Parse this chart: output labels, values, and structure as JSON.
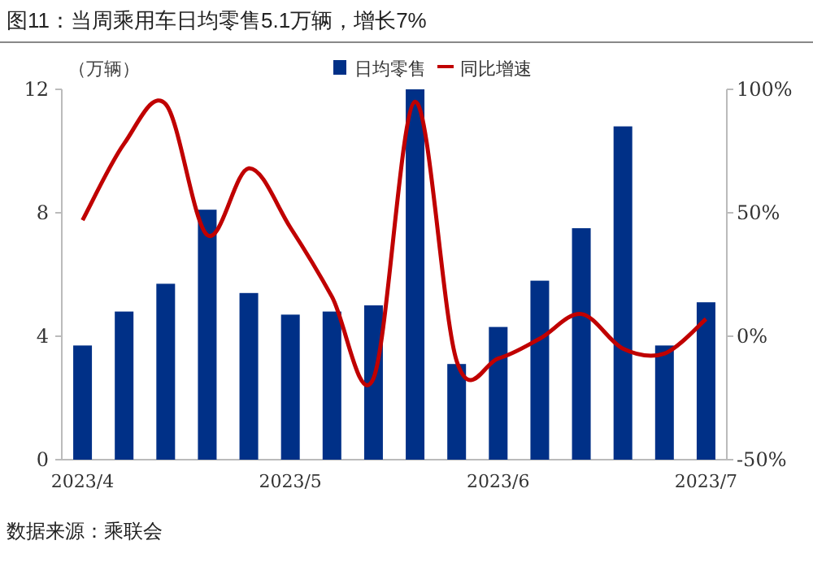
{
  "chart_data": {
    "type": "bar",
    "title": "图11：当周乘用车日均零售5.1万辆，增长7%",
    "ylabel": "（万辆）",
    "categories": [
      "2023/4",
      null,
      null,
      null,
      null,
      "2023/5",
      null,
      null,
      null,
      null,
      "2023/6",
      null,
      null,
      null,
      null,
      "2023/7"
    ],
    "series": [
      {
        "name": "日均零售",
        "color": "#003087",
        "values": [
          3.7,
          4.8,
          5.7,
          8.1,
          5.4,
          4.7,
          4.8,
          5.0,
          12.0,
          3.1,
          4.3,
          5.8,
          7.5,
          10.8,
          3.7,
          5.1
        ]
      },
      {
        "name": "同比增速",
        "type": "line",
        "axis": "y2",
        "color": "#c00000",
        "values": [
          47,
          78,
          94,
          41,
          68,
          44,
          16,
          -17,
          95,
          -10,
          -9,
          -1,
          9,
          -5,
          -7,
          7
        ]
      }
    ],
    "ylim": [
      0,
      12
    ],
    "yticks": [
      0,
      4,
      8,
      12
    ],
    "y2lim": [
      -50,
      100
    ],
    "y2ticks": [
      {
        "value": -50,
        "label": "-50%"
      },
      {
        "value": 0,
        "label": "0%"
      },
      {
        "value": 50,
        "label": "50%"
      },
      {
        "value": 100,
        "label": "100%"
      }
    ],
    "legend": "top",
    "grid": false,
    "marker": "none",
    "annotations": [
      "数据来源：乘联会"
    ]
  }
}
